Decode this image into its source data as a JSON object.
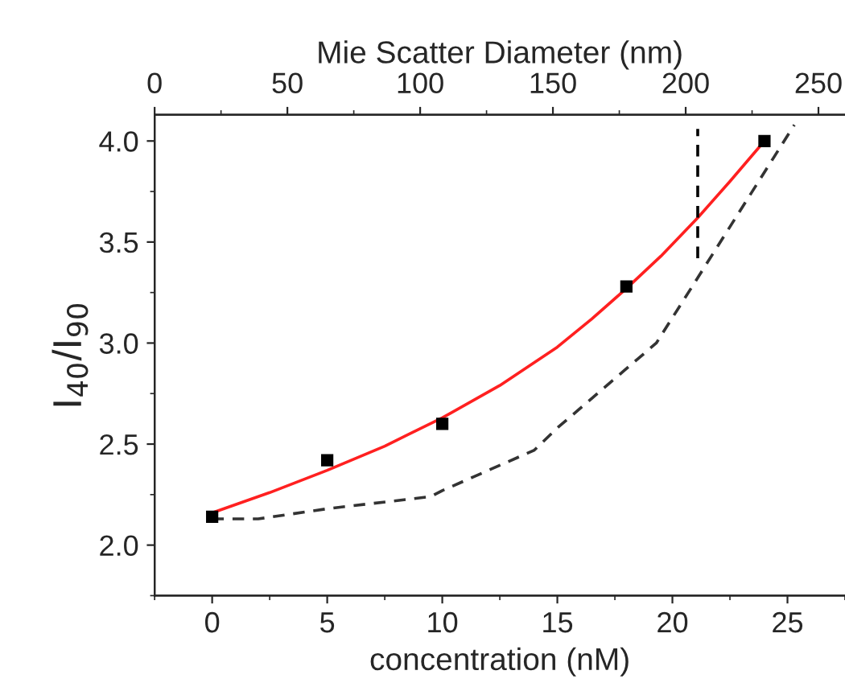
{
  "chart_data": {
    "type": "line",
    "xlabel": "concentration (nM)",
    "ylabel": "I$_{40}$/I$_{90}$",
    "x2label": "Mie Scatter Diameter (nm)",
    "xlim": [
      -2.5,
      27.5
    ],
    "xticks": [
      0,
      5,
      10,
      15,
      20,
      25
    ],
    "x2lim": [
      0,
      260
    ],
    "x2ticks": [
      0,
      50,
      100,
      150,
      200,
      250
    ],
    "ylim": [
      1.75,
      4.13
    ],
    "yticks": [
      {
        "value": 2.0,
        "label": "2.0"
      },
      {
        "value": 2.5,
        "label": "2.5"
      },
      {
        "value": 3.0,
        "label": "3.0"
      },
      {
        "value": 3.5,
        "label": "3.5"
      },
      {
        "value": 4.0,
        "label": "4.0"
      }
    ],
    "grid": false,
    "legend": false,
    "series": [
      {
        "type": "scatter",
        "color": "#000000",
        "marker": "square",
        "x": [
          0,
          5,
          10,
          18,
          24
        ],
        "values": [
          2.14,
          2.42,
          2.6,
          3.28,
          4.0
        ]
      },
      {
        "color": "#ff2020",
        "line_style": "solid",
        "x": [
          0,
          2.5,
          5,
          7.5,
          10,
          12.5,
          15,
          16.5,
          18,
          19.5,
          21.1,
          22.5,
          24
        ],
        "values": [
          2.16,
          2.26,
          2.37,
          2.49,
          2.63,
          2.79,
          2.98,
          3.12,
          3.27,
          3.43,
          3.62,
          3.8,
          4.0
        ]
      },
      {
        "color": "#333333",
        "line_style": "dashed",
        "x": [
          0,
          2,
          5,
          9.5,
          10,
          14,
          15,
          19.3,
          20.75,
          25.3
        ],
        "values": [
          2.13,
          2.13,
          2.18,
          2.24,
          2.27,
          2.47,
          2.58,
          3.0,
          3.26,
          4.08
        ]
      },
      {
        "color": "#000000",
        "line_style": "dashed",
        "x": [
          21.1,
          21.1
        ],
        "values": [
          3.42,
          4.06
        ]
      }
    ]
  }
}
